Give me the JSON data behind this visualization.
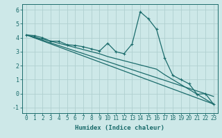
{
  "background_color": "#cde8e8",
  "grid_color": "#b0d0d0",
  "line_color": "#1a6b6b",
  "xlabel": "Humidex (Indice chaleur)",
  "ylim": [
    -1.4,
    6.4
  ],
  "xlim": [
    -0.5,
    23.5
  ],
  "yticks": [
    -1,
    0,
    1,
    2,
    3,
    4,
    5,
    6
  ],
  "xticks": [
    0,
    1,
    2,
    3,
    4,
    5,
    6,
    7,
    8,
    9,
    10,
    11,
    12,
    13,
    14,
    15,
    16,
    17,
    18,
    19,
    20,
    21,
    22,
    23
  ],
  "series1_x": [
    0,
    1,
    2,
    3,
    4,
    5,
    6,
    7,
    8,
    9,
    10,
    11,
    12,
    13,
    14,
    15,
    16,
    17,
    18,
    19,
    20,
    21,
    22,
    23
  ],
  "series1_y": [
    4.2,
    4.15,
    4.0,
    3.75,
    3.75,
    3.5,
    3.45,
    3.35,
    3.2,
    3.05,
    3.6,
    3.0,
    2.85,
    3.55,
    5.85,
    5.35,
    4.6,
    2.55,
    1.3,
    1.0,
    0.7,
    -0.05,
    0.0,
    -0.75
  ],
  "series2_x": [
    0,
    23
  ],
  "series2_y": [
    4.2,
    -0.75
  ],
  "series3_x": [
    0,
    9,
    10,
    16,
    17,
    23
  ],
  "series3_y": [
    4.2,
    2.85,
    2.65,
    1.75,
    1.35,
    -0.75
  ],
  "series4_x": [
    0,
    23
  ],
  "series4_y": [
    4.2,
    -0.2
  ]
}
